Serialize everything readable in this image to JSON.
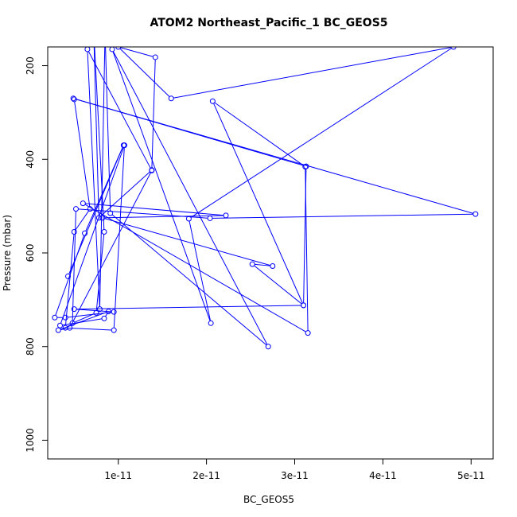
{
  "chart_data": {
    "type": "line",
    "title": "ATOM2 Northeast_Pacific_1 BC_GEOS5",
    "xlabel": "BC_GEOS5",
    "ylabel": "Pressure (mbar)",
    "xlim": [
      2e-12,
      5.25e-11
    ],
    "ylim": [
      1040,
      160
    ],
    "y_inverted": true,
    "x_ticks": [
      {
        "value": 1e-11,
        "label": "1e-11"
      },
      {
        "value": 2e-11,
        "label": "2e-11"
      },
      {
        "value": 3e-11,
        "label": "3e-11"
      },
      {
        "value": 4e-11,
        "label": "4e-11"
      },
      {
        "value": 5e-11,
        "label": "5e-11"
      }
    ],
    "y_ticks": [
      {
        "value": 200,
        "label": "200"
      },
      {
        "value": 400,
        "label": "400"
      },
      {
        "value": 600,
        "label": "600"
      },
      {
        "value": 800,
        "label": "800"
      },
      {
        "value": 1000,
        "label": "1000"
      }
    ],
    "series_color": "#0000ff",
    "series": [
      {
        "x": [
          5e-12,
          6.8e-12,
          5e-12,
          4e-12,
          9.5e-12,
          1.07e-11,
          3.4e-12,
          8.4e-12,
          8.9e-12,
          3.2e-12,
          4.5e-12,
          1.38e-11,
          6.5e-12,
          7.9e-12,
          8.5e-12,
          9.1e-12,
          2.7e-11,
          9.3e-12,
          2.05e-11,
          1.8e-11,
          4.8e-11,
          1.6e-11,
          1e-11,
          1.42e-11,
          1.38e-11,
          7.8e-12,
          7.2e-12,
          8.4e-12,
          7.5e-12,
          4.8e-12,
          5.2e-12,
          2.04e-11,
          5.05e-11,
          4.9e-12,
          3.13e-11,
          3.1e-11,
          2.07e-11,
          3.12e-11,
          3.15e-11,
          6e-12,
          2.22e-11,
          8.2e-12,
          2.75e-11,
          2.52e-11,
          3.1e-11,
          5e-12,
          9.5e-12,
          4e-12,
          2.8e-12,
          6.2e-12,
          1.06e-11,
          4.3e-12
        ],
        "y": [
          272,
          506,
          555,
          760,
          765,
          370,
          755,
          740,
          725,
          765,
          760,
          424,
          165,
          720,
          130,
          515,
          800,
          165,
          750,
          527,
          160,
          270,
          160,
          182,
          423,
          525,
          120,
          555,
          728,
          750,
          506,
          526,
          517,
          270,
          415,
          712,
          276,
          416,
          771,
          494,
          520,
          525,
          628,
          624,
          712,
          720,
          726,
          738,
          738,
          558,
          370,
          650
        ]
      }
    ]
  }
}
